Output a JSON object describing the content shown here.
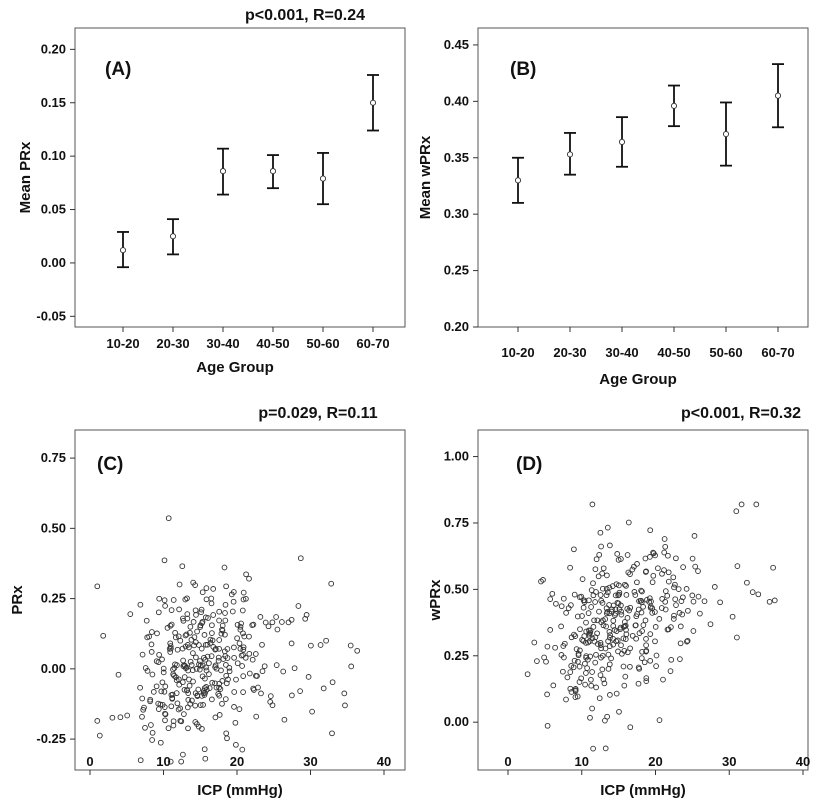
{
  "chart_data": [
    {
      "panel": "(A)",
      "type": "errorbar",
      "annotation": "p<0.001, R=0.24",
      "xlabel": "Age Group",
      "ylabel": "Mean PRx",
      "categories": [
        "10-20",
        "20-30",
        "30-40",
        "40-50",
        "50-60",
        "60-70"
      ],
      "mean": [
        0.012,
        0.025,
        0.086,
        0.086,
        0.079,
        0.15
      ],
      "lower": [
        -0.004,
        0.008,
        0.064,
        0.07,
        0.055,
        0.124
      ],
      "upper": [
        0.029,
        0.041,
        0.107,
        0.101,
        0.103,
        0.176
      ],
      "ylim": [
        -0.06,
        0.22
      ],
      "yticks": [
        -0.05,
        0.0,
        0.05,
        0.1,
        0.15,
        0.2
      ],
      "ytick_labels": [
        "-0.05",
        "0.00",
        "0.05",
        "0.10",
        "0.15",
        "0.20"
      ]
    },
    {
      "panel": "(B)",
      "type": "errorbar",
      "annotation": "",
      "xlabel": "Age Group",
      "ylabel": "Mean wPRx",
      "categories": [
        "10-20",
        "20-30",
        "30-40",
        "40-50",
        "50-60",
        "60-70"
      ],
      "mean": [
        0.33,
        0.353,
        0.364,
        0.396,
        0.371,
        0.405
      ],
      "lower": [
        0.31,
        0.335,
        0.342,
        0.378,
        0.343,
        0.377
      ],
      "upper": [
        0.35,
        0.372,
        0.386,
        0.414,
        0.399,
        0.433
      ],
      "ylim": [
        0.2,
        0.465
      ],
      "yticks": [
        0.2,
        0.25,
        0.3,
        0.35,
        0.4,
        0.45
      ],
      "ytick_labels": [
        "0.20",
        "0.25",
        "0.30",
        "0.35",
        "0.40",
        "0.45"
      ]
    },
    {
      "panel": "(C)",
      "type": "scatter",
      "annotation": "p=0.029, R=0.11",
      "xlabel": "ICP (mmHg)",
      "ylabel": "PRx",
      "xlim": [
        -1,
        41
      ],
      "ylim": [
        -0.36,
        0.85
      ],
      "xticks": [
        0,
        10,
        20,
        30,
        40
      ],
      "yticks": [
        -0.25,
        0.0,
        0.25,
        0.5,
        0.75
      ],
      "ytick_labels": [
        "-0.25",
        "0.00",
        "0.25",
        "0.50",
        "0.75"
      ],
      "n_points": 360,
      "seed": 11
    },
    {
      "panel": "(D)",
      "type": "scatter",
      "annotation": "p<0.001, R=0.32",
      "xlabel": "ICP (mmHg)",
      "ylabel": "wPRx",
      "xlim": [
        -1,
        41
      ],
      "ylim": [
        -0.18,
        1.1
      ],
      "xticks": [
        0,
        10,
        20,
        30,
        40
      ],
      "yticks": [
        0.0,
        0.25,
        0.5,
        0.75,
        1.0
      ],
      "ytick_labels": [
        "0.00",
        "0.25",
        "0.50",
        "0.75",
        "1.00"
      ],
      "n_points": 360,
      "seed": 32
    }
  ]
}
